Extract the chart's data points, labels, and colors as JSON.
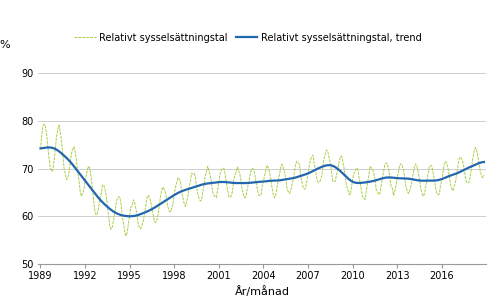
{
  "ylabel": "%",
  "xlabel": "År/månad",
  "ylim": [
    50,
    92
  ],
  "yticks": [
    50,
    60,
    70,
    80,
    90
  ],
  "xlim_start": 1988.83,
  "xlim_end": 2019.0,
  "xticks": [
    1989,
    1992,
    1995,
    1998,
    2001,
    2004,
    2007,
    2010,
    2013,
    2016
  ],
  "legend1": "Relativt sysselsättningstal",
  "legend2": "Relativt sysselsättningstal, trend",
  "color_raw": "#a8d04a",
  "color_trend": "#2266b0",
  "background_color": "#ffffff",
  "grid_color": "#c8c8c8",
  "trend_points": [
    [
      1989.0,
      74.2
    ],
    [
      1989.5,
      74.5
    ],
    [
      1990.0,
      74.2
    ],
    [
      1990.5,
      73.0
    ],
    [
      1991.0,
      71.5
    ],
    [
      1991.5,
      69.5
    ],
    [
      1992.0,
      67.5
    ],
    [
      1992.5,
      65.5
    ],
    [
      1993.0,
      63.5
    ],
    [
      1993.5,
      62.0
    ],
    [
      1994.0,
      60.8
    ],
    [
      1994.5,
      60.2
    ],
    [
      1995.0,
      60.0
    ],
    [
      1995.5,
      60.2
    ],
    [
      1996.0,
      60.8
    ],
    [
      1996.5,
      61.5
    ],
    [
      1997.0,
      62.5
    ],
    [
      1997.5,
      63.5
    ],
    [
      1998.0,
      64.5
    ],
    [
      1998.5,
      65.3
    ],
    [
      1999.0,
      65.8
    ],
    [
      1999.5,
      66.3
    ],
    [
      2000.0,
      66.8
    ],
    [
      2000.5,
      67.0
    ],
    [
      2001.0,
      67.2
    ],
    [
      2001.5,
      67.2
    ],
    [
      2002.0,
      67.0
    ],
    [
      2002.5,
      67.0
    ],
    [
      2003.0,
      67.0
    ],
    [
      2003.5,
      67.2
    ],
    [
      2004.0,
      67.3
    ],
    [
      2004.5,
      67.5
    ],
    [
      2005.0,
      67.5
    ],
    [
      2005.5,
      67.8
    ],
    [
      2006.0,
      68.0
    ],
    [
      2006.5,
      68.5
    ],
    [
      2007.0,
      69.0
    ],
    [
      2007.5,
      69.8
    ],
    [
      2008.0,
      70.5
    ],
    [
      2008.5,
      70.8
    ],
    [
      2009.0,
      70.0
    ],
    [
      2009.5,
      68.5
    ],
    [
      2010.0,
      67.2
    ],
    [
      2010.5,
      67.0
    ],
    [
      2011.0,
      67.2
    ],
    [
      2011.5,
      67.5
    ],
    [
      2012.0,
      68.0
    ],
    [
      2012.5,
      68.2
    ],
    [
      2013.0,
      68.0
    ],
    [
      2013.5,
      68.0
    ],
    [
      2014.0,
      67.8
    ],
    [
      2014.5,
      67.5
    ],
    [
      2015.0,
      67.5
    ],
    [
      2015.5,
      67.5
    ],
    [
      2016.0,
      67.8
    ],
    [
      2016.5,
      68.5
    ],
    [
      2017.0,
      69.0
    ],
    [
      2017.5,
      69.8
    ],
    [
      2018.0,
      70.5
    ],
    [
      2018.5,
      71.2
    ],
    [
      2018.92,
      71.5
    ]
  ]
}
